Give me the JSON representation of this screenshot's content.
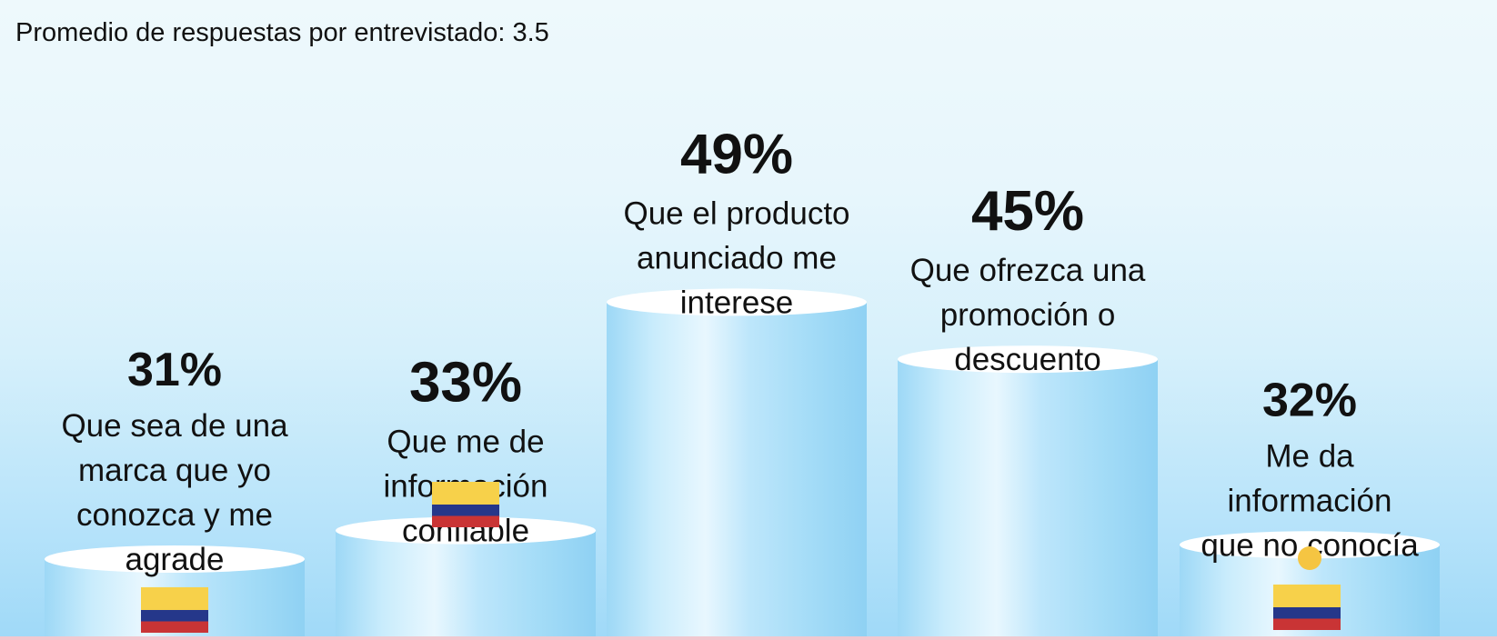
{
  "header": {
    "subtitle": "Promedio de respuestas por entrevistado: 3.5"
  },
  "chart_data": {
    "type": "bar",
    "categories": [
      "Que sea de una marca que yo conozca y me agrade",
      "Que me de información confiable",
      "Que el producto anunciado me interese",
      "Que ofrezca una promoción o descuento",
      "Me da información que no conocía"
    ],
    "category_lines": [
      [
        "Que sea de una",
        "marca que yo",
        "conozca y me",
        "agrade"
      ],
      [
        "Que me de",
        "información",
        "confiable"
      ],
      [
        "Que el producto",
        "anunciado me",
        "interese"
      ],
      [
        "Que ofrezca una",
        "promoción o",
        "descuento"
      ],
      [
        "Me da",
        "información",
        "que no conocía"
      ]
    ],
    "values": [
      31,
      33,
      49,
      45,
      32
    ],
    "value_labels": [
      "31%",
      "33%",
      "49%",
      "45%",
      "32%"
    ],
    "unit": "%",
    "ylim": [
      0,
      100
    ],
    "grid": false,
    "legend": "none",
    "marker_icon": "colombia-flag-icon",
    "dot_icon_on_category": 4,
    "colors": {
      "cylinder_light": "#eaf8fe",
      "cylinder_mid": "#b5e3f9",
      "cylinder_dark": "#8ccff2",
      "cylinder_top": "#ffffff",
      "flag_yellow": "#f7d14a",
      "flag_blue": "#25378a",
      "flag_red": "#c93435",
      "dot": "#f5c542"
    }
  }
}
